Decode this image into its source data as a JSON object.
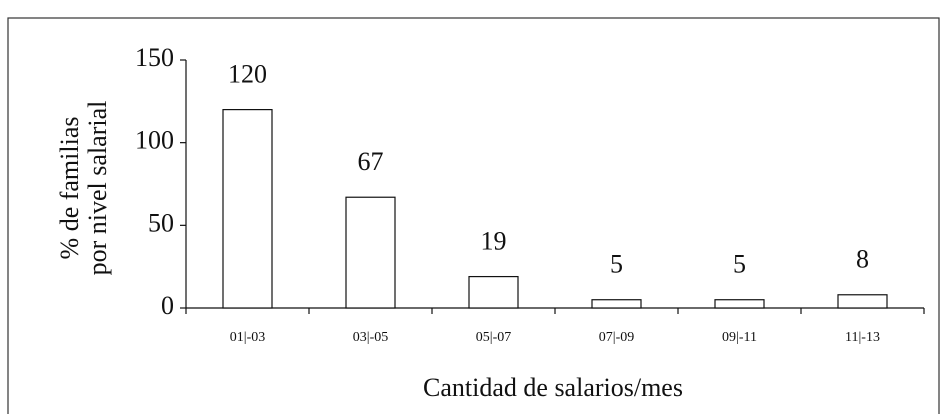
{
  "chart_data": {
    "type": "bar",
    "y_label": [
      "% de familias",
      "por nivel salarial"
    ],
    "x_label": "Cantidad de salarios/mes",
    "categories": [
      "01|-03",
      "03|-05",
      "05|-07",
      "07|-09",
      "09|-11",
      "11|-13"
    ],
    "values": [
      120,
      67,
      19,
      5,
      5,
      8
    ],
    "color": "#ffffff",
    "ylim": [
      0,
      150
    ],
    "yticks": [
      0,
      50,
      100,
      150
    ],
    "grid": false
  }
}
